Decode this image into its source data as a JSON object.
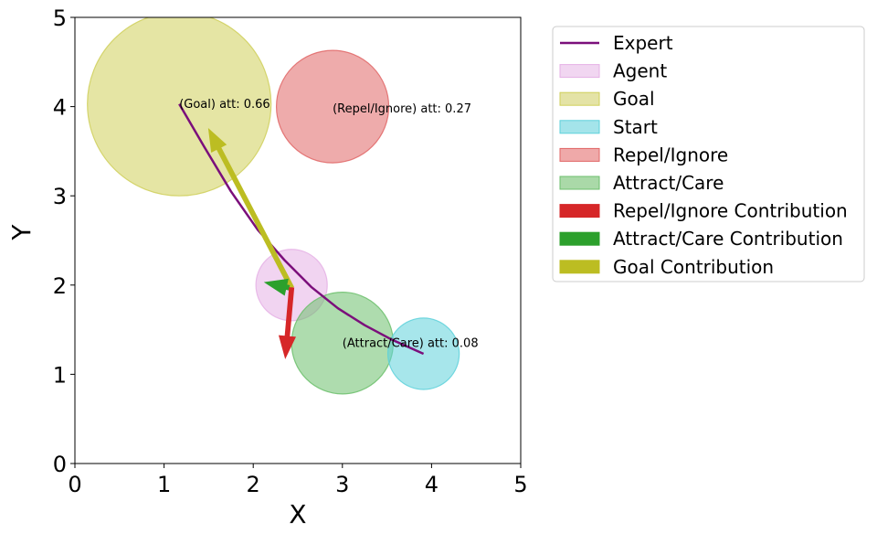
{
  "chart_data": {
    "type": "scatter",
    "xlabel": "X",
    "ylabel": "Y",
    "xlim": [
      0,
      5
    ],
    "ylim": [
      0,
      5
    ],
    "xticks": [
      "0",
      "1",
      "2",
      "3",
      "4",
      "5"
    ],
    "yticks": [
      "0",
      "1",
      "2",
      "3",
      "4",
      "5"
    ],
    "grid": false,
    "legend_placement": "outside-right",
    "regions": [
      {
        "name": "Goal",
        "cx": 1.17,
        "cy": 4.03,
        "r": 1.03,
        "color": "#cfcf5a",
        "alpha": 0.55
      },
      {
        "name": "Repel/Ignore",
        "cx": 2.89,
        "cy": 4.0,
        "r": 0.63,
        "color": "#e06666",
        "alpha": 0.55
      },
      {
        "name": "Agent",
        "cx": 2.43,
        "cy": 2.0,
        "r": 0.4,
        "color": "#e5b0e5",
        "alpha": 0.55
      },
      {
        "name": "Attract/Care",
        "cx": 3.0,
        "cy": 1.35,
        "r": 0.57,
        "color": "#6cbf6c",
        "alpha": 0.55
      },
      {
        "name": "Start",
        "cx": 3.91,
        "cy": 1.23,
        "r": 0.4,
        "color": "#5ed1db",
        "alpha": 0.55
      }
    ],
    "expert_path": {
      "name": "Expert",
      "color": "#7b0f7b",
      "x": [
        1.17,
        1.45,
        1.75,
        2.05,
        2.35,
        2.65,
        2.95,
        3.25,
        3.55,
        3.91
      ],
      "y": [
        4.03,
        3.55,
        3.05,
        2.62,
        2.28,
        1.98,
        1.74,
        1.55,
        1.39,
        1.23
      ]
    },
    "arrows": [
      {
        "name": "Goal Contribution",
        "from": [
          2.43,
          1.97
        ],
        "to": [
          1.5,
          3.75
        ],
        "color": "#bcbd22"
      },
      {
        "name": "Attract/Care Contribution",
        "from": [
          2.4,
          1.97
        ],
        "to": [
          2.13,
          2.03
        ],
        "color": "#2ca02c"
      },
      {
        "name": "Repel/Ignore Contribution",
        "from": [
          2.43,
          1.97
        ],
        "to": [
          2.36,
          1.18
        ],
        "color": "#d62728"
      }
    ],
    "annotations": [
      {
        "text": "(Goal) att: 0.66",
        "x": 1.17,
        "y": 4.03
      },
      {
        "text": "(Repel/Ignore) att: 0.27",
        "x": 2.89,
        "y": 3.98
      },
      {
        "text": "(Attract/Care) att: 0.08",
        "x": 3.0,
        "y": 1.35
      }
    ],
    "legend": [
      {
        "label": "Expert",
        "kind": "line",
        "color": "#7b0f7b"
      },
      {
        "label": "Agent",
        "kind": "patch",
        "color": "#f1d6f1",
        "edge": "#e5b0e5"
      },
      {
        "label": "Goal",
        "kind": "patch",
        "color": "#e4e3a6",
        "edge": "#cfcf5a"
      },
      {
        "label": "Start",
        "kind": "patch",
        "color": "#a4e4ea",
        "edge": "#5ed1db"
      },
      {
        "label": "Repel/Ignore",
        "kind": "patch",
        "color": "#efa9a9",
        "edge": "#e06666"
      },
      {
        "label": "Attract/Care",
        "kind": "patch",
        "color": "#aad9a8",
        "edge": "#6cbf6c"
      },
      {
        "label": "Repel/Ignore Contribution",
        "kind": "patch",
        "color": "#d62728",
        "edge": "#d62728"
      },
      {
        "label": "Attract/Care Contribution",
        "kind": "patch",
        "color": "#2ca02c",
        "edge": "#2ca02c"
      },
      {
        "label": "Goal Contribution",
        "kind": "patch",
        "color": "#bcbd22",
        "edge": "#bcbd22"
      }
    ]
  }
}
